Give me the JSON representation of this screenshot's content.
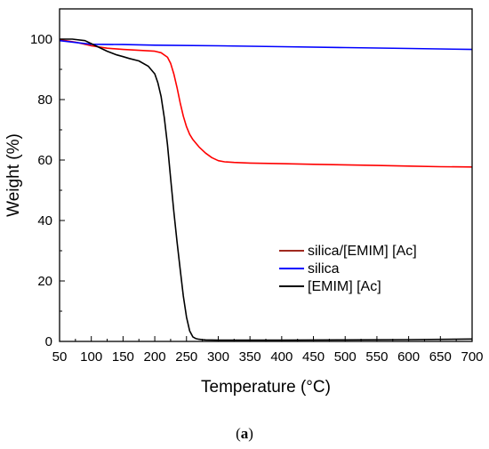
{
  "chart_data": {
    "type": "line",
    "xlabel": "Temperature (°C)",
    "ylabel": "Weight (%)",
    "xlim": [
      50,
      700
    ],
    "ylim": [
      0,
      110
    ],
    "xticks": [
      50,
      100,
      150,
      200,
      250,
      300,
      350,
      400,
      450,
      500,
      550,
      600,
      650,
      700
    ],
    "yticks": [
      0,
      20,
      40,
      60,
      80,
      100
    ],
    "legend_position": "lower-right",
    "grid": false,
    "series": [
      {
        "name": "silica/[EMIM] [Ac]",
        "color": "#ff0000",
        "legend_color": "#a0291f",
        "x": [
          50,
          75,
          100,
          125,
          150,
          175,
          200,
          210,
          220,
          225,
          230,
          235,
          240,
          245,
          250,
          255,
          260,
          265,
          270,
          280,
          290,
          300,
          310,
          325,
          350,
          400,
          450,
          500,
          550,
          600,
          650,
          700
        ],
        "y": [
          99.8,
          99.0,
          97.8,
          97.0,
          96.6,
          96.3,
          96.0,
          95.5,
          94.0,
          92.0,
          88.5,
          84.0,
          79.0,
          74.5,
          71.0,
          68.5,
          66.8,
          65.5,
          64.3,
          62.3,
          60.8,
          59.8,
          59.4,
          59.2,
          59.0,
          58.8,
          58.6,
          58.4,
          58.2,
          58.0,
          57.8,
          57.7
        ]
      },
      {
        "name": "silica",
        "color": "#0000ff",
        "legend_color": "#0000ff",
        "x": [
          50,
          100,
          150,
          200,
          300,
          400,
          500,
          600,
          700
        ],
        "y": [
          99.5,
          98.3,
          98.2,
          98.0,
          97.8,
          97.5,
          97.2,
          96.9,
          96.6
        ]
      },
      {
        "name": "[EMIM] [Ac]",
        "color": "#000000",
        "legend_color": "#000000",
        "x": [
          50,
          70,
          90,
          100,
          110,
          125,
          140,
          150,
          160,
          175,
          190,
          200,
          205,
          210,
          215,
          220,
          225,
          230,
          235,
          240,
          245,
          250,
          255,
          260,
          265,
          270,
          275,
          280,
          300,
          350,
          400,
          500,
          600,
          700
        ],
        "y": [
          100,
          100,
          99.5,
          98.5,
          97.5,
          96.0,
          94.8,
          94.2,
          93.6,
          92.8,
          91.0,
          88.5,
          85.5,
          81.0,
          74.0,
          65.0,
          54.0,
          43.0,
          33.0,
          24.0,
          15.0,
          8.0,
          3.5,
          1.5,
          0.9,
          0.7,
          0.6,
          0.5,
          0.4,
          0.4,
          0.4,
          0.5,
          0.6,
          0.8
        ]
      }
    ]
  },
  "caption": {
    "open": "(",
    "letter": "a",
    "close": ")"
  }
}
